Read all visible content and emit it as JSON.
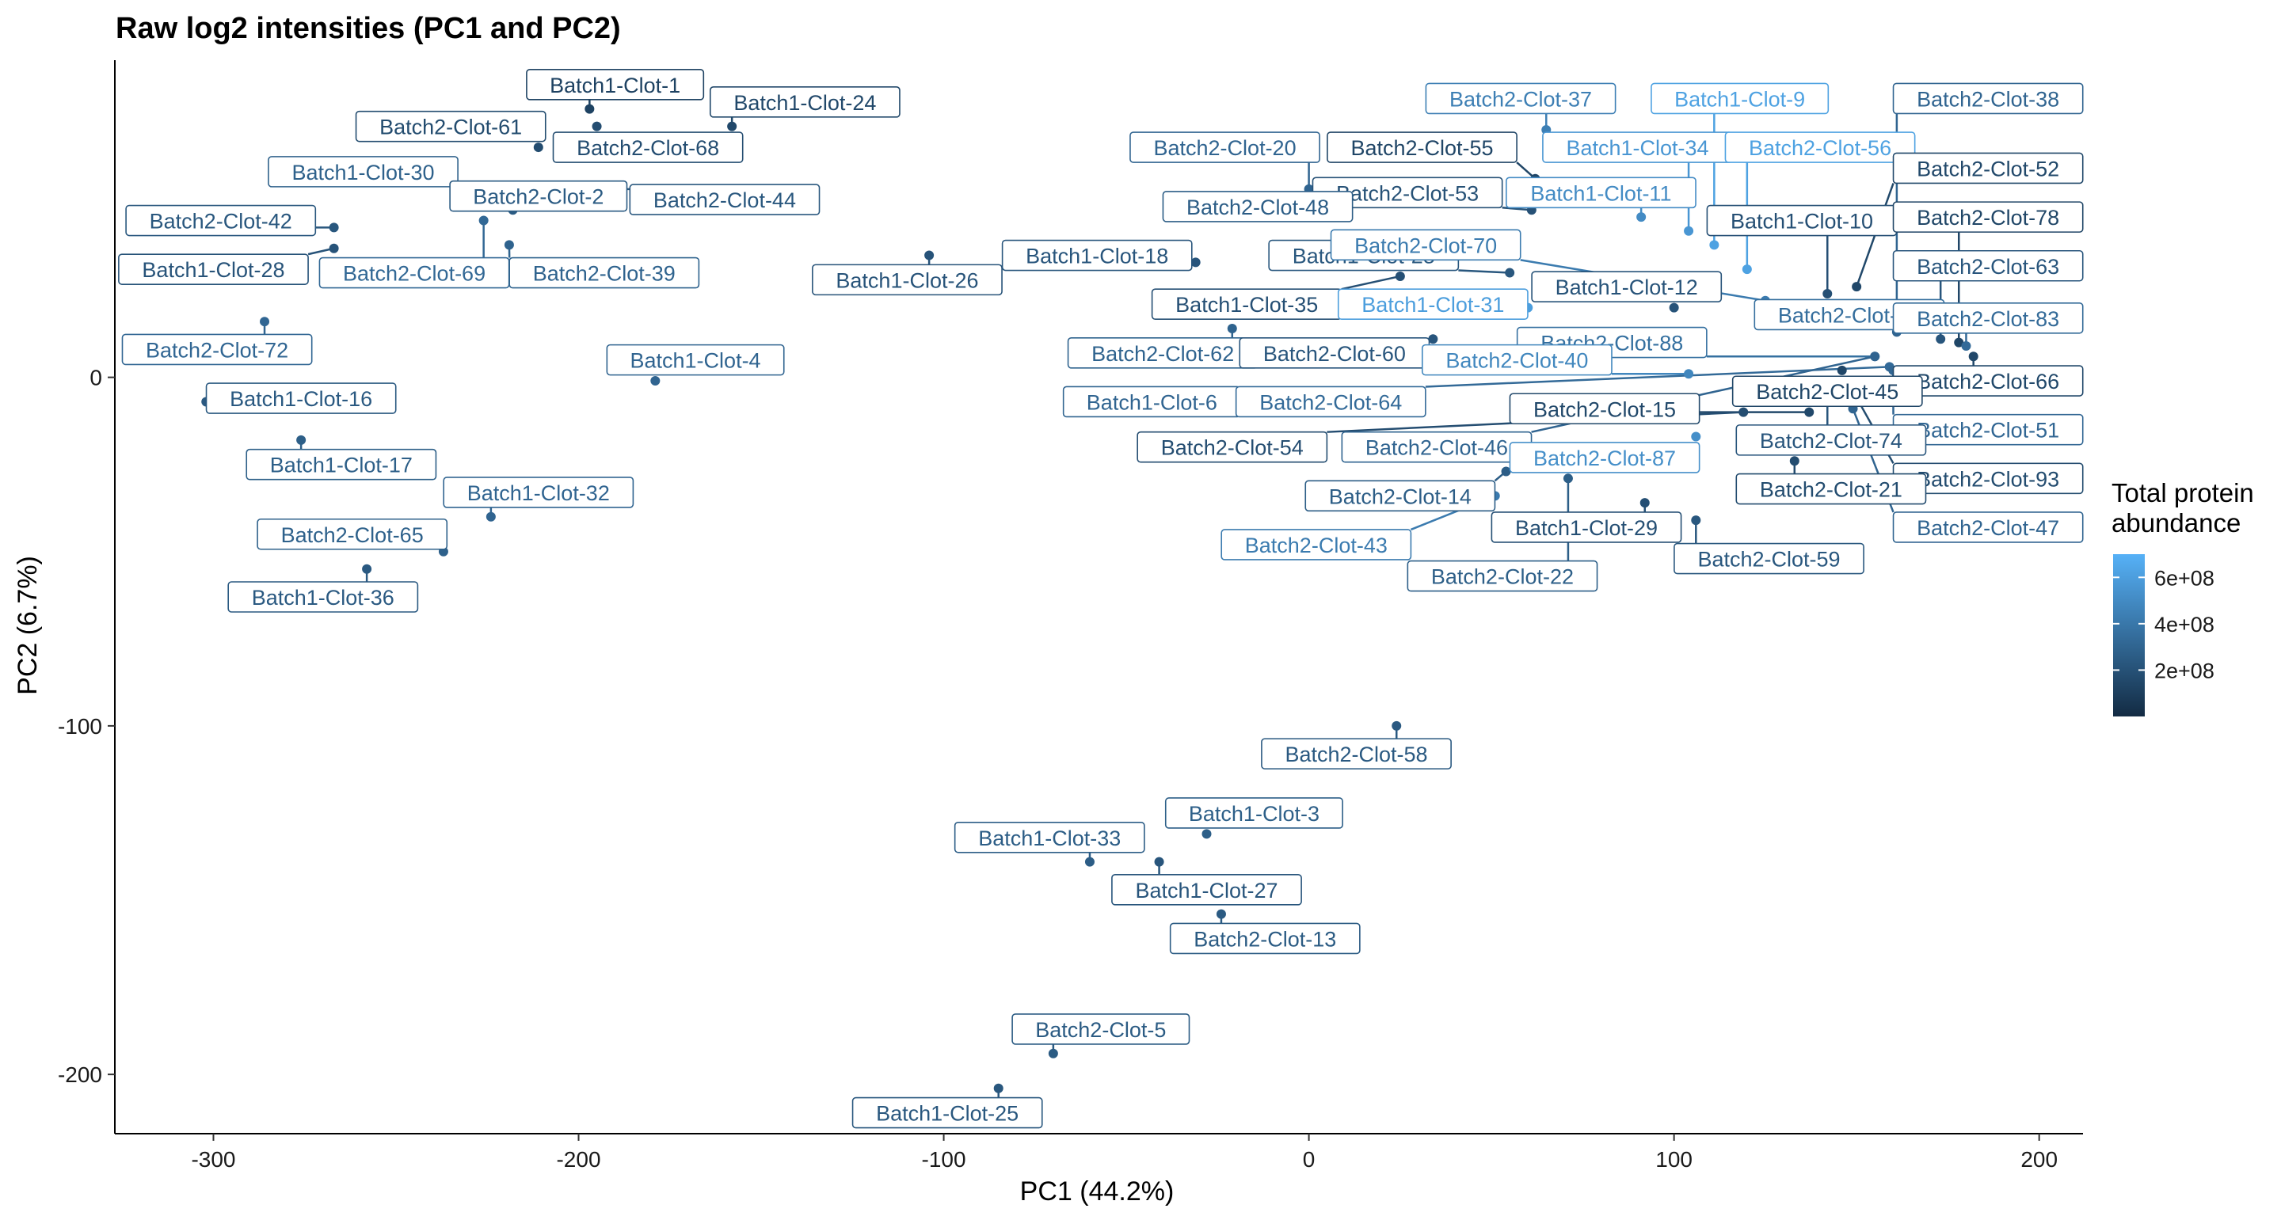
{
  "chart_data": {
    "type": "scatter",
    "title": "Raw log2 intensities (PC1 and PC2)",
    "xlabel": "PC1 (44.2%)",
    "ylabel": "PC2 (6.7%)",
    "xlim": [
      -327,
      212
    ],
    "ylim": [
      -217,
      91
    ],
    "x_ticks": [
      -300,
      -200,
      -100,
      0,
      100,
      200
    ],
    "y_ticks": [
      0,
      -100,
      -200
    ],
    "grid": false,
    "legend": {
      "title_lines": [
        "Total protein",
        "abundance"
      ],
      "position": "right",
      "color_low": "#132b43",
      "color_high": "#56b1f7",
      "range": [
        0,
        700000000
      ],
      "ticks": [
        {
          "label": "2e+08",
          "value": 200000000
        },
        {
          "label": "4e+08",
          "value": 400000000
        },
        {
          "label": "6e+08",
          "value": 600000000
        }
      ]
    },
    "points": [
      {
        "name": "Batch1-Clot-1",
        "x": -197,
        "y": 77,
        "lx": -190,
        "ly": 84,
        "abundance": 120000000
      },
      {
        "name": "Batch1-Clot-24",
        "x": -158,
        "y": 72,
        "lx": -138,
        "ly": 79,
        "abundance": 150000000
      },
      {
        "name": "Batch2-Clot-61",
        "x": -211,
        "y": 66,
        "lx": -235,
        "ly": 72,
        "abundance": 170000000
      },
      {
        "name": "Batch2-Clot-68",
        "x": -195,
        "y": 72,
        "lx": -181,
        "ly": 66,
        "abundance": 180000000
      },
      {
        "name": "Batch1-Clot-30",
        "x": -240,
        "y": 58,
        "lx": -259,
        "ly": 59,
        "abundance": 280000000
      },
      {
        "name": "Batch2-Clot-2",
        "x": -218,
        "y": 48,
        "lx": -211,
        "ly": 52,
        "abundance": 250000000
      },
      {
        "name": "Batch2-Clot-44",
        "x": -205,
        "y": 54,
        "lx": -160,
        "ly": 51,
        "abundance": 230000000
      },
      {
        "name": "Batch2-Clot-42",
        "x": -267,
        "y": 43,
        "lx": -298,
        "ly": 45,
        "abundance": 230000000
      },
      {
        "name": "Batch1-Clot-28",
        "x": -267,
        "y": 37,
        "lx": -300,
        "ly": 31,
        "abundance": 210000000
      },
      {
        "name": "Batch2-Clot-69",
        "x": -226,
        "y": 45,
        "lx": -245,
        "ly": 30,
        "abundance": 320000000
      },
      {
        "name": "Batch2-Clot-39",
        "x": -219,
        "y": 38,
        "lx": -193,
        "ly": 30,
        "abundance": 290000000
      },
      {
        "name": "Batch1-Clot-26",
        "x": -104,
        "y": 35,
        "lx": -110,
        "ly": 28,
        "abundance": 210000000
      },
      {
        "name": "Batch2-Clot-72",
        "x": -286,
        "y": 16,
        "lx": -299,
        "ly": 8,
        "abundance": 310000000
      },
      {
        "name": "Batch1-Clot-16",
        "x": -302,
        "y": -7,
        "lx": -276,
        "ly": -6,
        "abundance": 240000000
      },
      {
        "name": "Batch1-Clot-4",
        "x": -179,
        "y": -1,
        "lx": -168,
        "ly": 5,
        "abundance": 300000000
      },
      {
        "name": "Batch1-Clot-17",
        "x": -276,
        "y": -18,
        "lx": -265,
        "ly": -25,
        "abundance": 270000000
      },
      {
        "name": "Batch1-Clot-32",
        "x": -224,
        "y": -40,
        "lx": -211,
        "ly": -33,
        "abundance": 300000000
      },
      {
        "name": "Batch2-Clot-65",
        "x": -237,
        "y": -50,
        "lx": -262,
        "ly": -45,
        "abundance": 280000000
      },
      {
        "name": "Batch1-Clot-36",
        "x": -258,
        "y": -55,
        "lx": -270,
        "ly": -63,
        "abundance": 240000000
      },
      {
        "name": "Batch2-Clot-37",
        "x": 65,
        "y": 71,
        "lx": 58,
        "ly": 80,
        "abundance": 440000000
      },
      {
        "name": "Batch1-Clot-9",
        "x": 111,
        "y": 38,
        "lx": 118,
        "ly": 80,
        "abundance": 620000000
      },
      {
        "name": "Batch2-Clot-38",
        "x": 161,
        "y": 13,
        "lx": 186,
        "ly": 80,
        "abundance": 300000000
      },
      {
        "name": "Batch2-Clot-20",
        "x": 0,
        "y": 54,
        "lx": -23,
        "ly": 66,
        "abundance": 300000000
      },
      {
        "name": "Batch2-Clot-55",
        "x": 62,
        "y": 57,
        "lx": 31,
        "ly": 66,
        "abundance": 140000000
      },
      {
        "name": "Batch1-Clot-34",
        "x": 104,
        "y": 42,
        "lx": 90,
        "ly": 66,
        "abundance": 560000000
      },
      {
        "name": "Batch2-Clot-56",
        "x": 120,
        "y": 31,
        "lx": 140,
        "ly": 66,
        "abundance": 620000000
      },
      {
        "name": "Batch2-Clot-52",
        "x": 150,
        "y": 26,
        "lx": 186,
        "ly": 60,
        "abundance": 150000000
      },
      {
        "name": "Batch2-Clot-53",
        "x": 61,
        "y": 48,
        "lx": 27,
        "ly": 53,
        "abundance": 200000000
      },
      {
        "name": "Batch1-Clot-11",
        "x": 91,
        "y": 46,
        "lx": 80,
        "ly": 53,
        "abundance": 500000000
      },
      {
        "name": "Batch2-Clot-48",
        "x": 1,
        "y": 48,
        "lx": -14,
        "ly": 49,
        "abundance": 260000000
      },
      {
        "name": "Batch1-Clot-10",
        "x": 142,
        "y": 24,
        "lx": 135,
        "ly": 45,
        "abundance": 190000000
      },
      {
        "name": "Batch2-Clot-78",
        "x": 178,
        "y": 10,
        "lx": 186,
        "ly": 46,
        "abundance": 140000000
      },
      {
        "name": "Batch1-Clot-18",
        "x": -31,
        "y": 33,
        "lx": -58,
        "ly": 35,
        "abundance": 220000000
      },
      {
        "name": "Batch1-Clot-28b",
        "label": "Batch1-Clot-28",
        "x": 55,
        "y": 30,
        "lx": 15,
        "ly": 35,
        "abundance": 230000000
      },
      {
        "name": "Batch2-Clot-70",
        "x": 125,
        "y": 22,
        "lx": 32,
        "ly": 38,
        "abundance": 420000000
      },
      {
        "name": "Batch2-Clot-63",
        "x": 173,
        "y": 11,
        "lx": 186,
        "ly": 32,
        "abundance": 220000000
      },
      {
        "name": "Batch1-Clot-12",
        "x": 100,
        "y": 20,
        "lx": 87,
        "ly": 26,
        "abundance": 210000000
      },
      {
        "name": "Batch1-Clot-35",
        "x": 25,
        "y": 29,
        "lx": -17,
        "ly": 21,
        "abundance": 190000000
      },
      {
        "name": "Batch1-Clot-31",
        "x": 60,
        "y": 20,
        "lx": 34,
        "ly": 21,
        "abundance": 600000000
      },
      {
        "name": "Batch2-Clot-75",
        "label": "Batch2-Clot-75",
        "x": 138,
        "y": 21,
        "lx": 148,
        "ly": 18,
        "abundance": 350000000
      },
      {
        "name": "Batch2-Clot-83",
        "x": 180,
        "y": 9,
        "lx": 186,
        "ly": 17,
        "abundance": 330000000
      },
      {
        "name": "Batch2-Clot-62",
        "x": -21,
        "y": 14,
        "lx": -40,
        "ly": 7,
        "abundance": 290000000
      },
      {
        "name": "Batch2-Clot-60",
        "x": 34,
        "y": 11,
        "lx": 7,
        "ly": 7,
        "abundance": 220000000
      },
      {
        "name": "Batch2-Clot-88",
        "x": 155,
        "y": 6,
        "lx": 83,
        "ly": 10,
        "abundance": 360000000
      },
      {
        "name": "Batch2-Clot-40",
        "x": 104,
        "y": 1,
        "lx": 57,
        "ly": 5,
        "abundance": 480000000
      },
      {
        "name": "Batch2-Clot-66",
        "x": 182,
        "y": 6,
        "lx": 186,
        "ly": -1,
        "abundance": 150000000
      },
      {
        "name": "Batch1-Clot-6",
        "x": -21,
        "y": -7,
        "lx": -43,
        "ly": -7,
        "abundance": 300000000
      },
      {
        "name": "Batch2-Clot-64",
        "x": 159,
        "y": 3,
        "lx": 6,
        "ly": -7,
        "abundance": 330000000
      },
      {
        "name": "Batch2-Clot-45",
        "x": 146,
        "y": 2,
        "lx": 142,
        "ly": -4,
        "abundance": 140000000
      },
      {
        "name": "Batch2-Clot-15",
        "x": 137,
        "y": -10,
        "lx": 81,
        "ly": -9,
        "abundance": 150000000
      },
      {
        "name": "Batch2-Clot-51",
        "x": 160,
        "y": 2,
        "lx": 186,
        "ly": -15,
        "abundance": 310000000
      },
      {
        "name": "Batch2-Clot-54",
        "x": 119,
        "y": -10,
        "lx": -21,
        "ly": -20,
        "abundance": 180000000
      },
      {
        "name": "Batch2-Clot-46",
        "x": 155,
        "y": 6,
        "lx": 35,
        "ly": -20,
        "abundance": 300000000
      },
      {
        "name": "Batch2-Clot-74",
        "x": 142,
        "y": -6,
        "lx": 143,
        "ly": -18,
        "abundance": 220000000
      },
      {
        "name": "Batch2-Clot-87",
        "x": 106,
        "y": -17,
        "lx": 81,
        "ly": -23,
        "abundance": 520000000
      },
      {
        "name": "Batch2-Clot-93",
        "x": 149,
        "y": -4,
        "lx": 186,
        "ly": -29,
        "abundance": 170000000
      },
      {
        "name": "Batch2-Clot-14",
        "x": 54,
        "y": -27,
        "lx": 25,
        "ly": -34,
        "abundance": 260000000
      },
      {
        "name": "Batch2-Clot-21",
        "x": 133,
        "y": -24,
        "lx": 143,
        "ly": -32,
        "abundance": 170000000
      },
      {
        "name": "Batch1-Clot-29",
        "x": 92,
        "y": -36,
        "lx": 76,
        "ly": -43,
        "abundance": 190000000
      },
      {
        "name": "Batch2-Clot-43",
        "x": 51,
        "y": -34,
        "lx": 2,
        "ly": -48,
        "abundance": 420000000
      },
      {
        "name": "Batch2-Clot-47",
        "x": 149,
        "y": -9,
        "lx": 186,
        "ly": -43,
        "abundance": 300000000
      },
      {
        "name": "Batch2-Clot-59",
        "x": 106,
        "y": -41,
        "lx": 126,
        "ly": -52,
        "abundance": 230000000
      },
      {
        "name": "Batch2-Clot-22",
        "x": 71,
        "y": -29,
        "lx": 53,
        "ly": -57,
        "abundance": 270000000
      },
      {
        "name": "Batch2-Clot-58",
        "x": 24,
        "y": -100,
        "lx": 13,
        "ly": -108,
        "abundance": 240000000
      },
      {
        "name": "Batch1-Clot-3",
        "x": -28,
        "y": -131,
        "lx": -15,
        "ly": -125,
        "abundance": 270000000
      },
      {
        "name": "Batch1-Clot-33",
        "x": -60,
        "y": -139,
        "lx": -71,
        "ly": -132,
        "abundance": 260000000
      },
      {
        "name": "Batch1-Clot-27",
        "x": -41,
        "y": -139,
        "lx": -28,
        "ly": -147,
        "abundance": 220000000
      },
      {
        "name": "Batch2-Clot-13",
        "x": -24,
        "y": -154,
        "lx": -12,
        "ly": -161,
        "abundance": 250000000
      },
      {
        "name": "Batch2-Clot-5",
        "x": -70,
        "y": -194,
        "lx": -57,
        "ly": -187,
        "abundance": 250000000
      },
      {
        "name": "Batch1-Clot-25",
        "x": -85,
        "y": -204,
        "lx": -99,
        "ly": -211,
        "abundance": 230000000
      }
    ]
  }
}
